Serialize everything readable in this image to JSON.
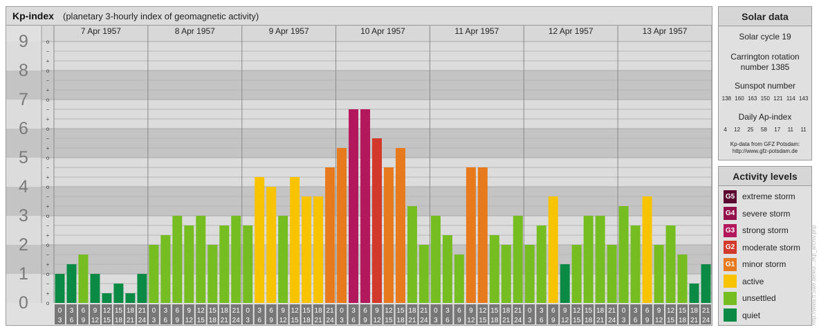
{
  "header": {
    "title": "Kp-index",
    "subtitle": "(planetary 3-hourly index of geomagnetic activity)"
  },
  "chart_data": {
    "type": "bar",
    "title": "Kp-index",
    "subtitle": "(planetary 3-hourly index of geomagnetic activity)",
    "ylim": [
      0,
      9
    ],
    "y_ticks": [
      "0",
      "1",
      "2",
      "3",
      "4",
      "5",
      "6",
      "7",
      "8",
      "9"
    ],
    "minor_tick_labels": [
      "o",
      "+",
      "−"
    ],
    "days": [
      "7 Apr 1957",
      "8 Apr 1957",
      "9 Apr 1957",
      "10 Apr 1957",
      "11 Apr 1957",
      "12 Apr 1957",
      "13 Apr 1957"
    ],
    "intervals": [
      [
        "0",
        "3"
      ],
      [
        "3",
        "6"
      ],
      [
        "6",
        "9"
      ],
      [
        "9",
        "12"
      ],
      [
        "12",
        "15"
      ],
      [
        "15",
        "18"
      ],
      [
        "18",
        "21"
      ],
      [
        "21",
        "24"
      ]
    ],
    "values": [
      [
        1.0,
        1.333,
        1.667,
        1.0,
        0.333,
        0.667,
        0.333,
        1.0
      ],
      [
        2.0,
        2.333,
        3.0,
        2.667,
        3.0,
        2.0,
        2.667,
        3.0
      ],
      [
        2.667,
        4.333,
        4.0,
        3.0,
        4.333,
        3.667,
        3.667,
        4.667
      ],
      [
        5.333,
        6.667,
        6.667,
        5.667,
        4.667,
        5.333,
        3.333,
        2.0
      ],
      [
        3.0,
        2.333,
        1.667,
        4.667,
        4.667,
        2.333,
        2.0,
        3.0
      ],
      [
        2.0,
        2.667,
        3.667,
        1.333,
        2.0,
        3.0,
        3.0,
        2.0
      ],
      [
        3.333,
        2.667,
        3.667,
        2.0,
        2.667,
        1.667,
        0.667,
        1.333
      ]
    ],
    "colors": {
      "quiet": "#0a8a44",
      "unsettled": "#76bd22",
      "active": "#f8c300",
      "G1": "#e67a1c",
      "G2": "#d2392a",
      "G3": "#b3175c",
      "G4": "#93124a",
      "G5": "#5c0930"
    },
    "grid": true
  },
  "solar": {
    "title": "Solar data",
    "cycle": "Solar cycle 19",
    "carrington_line1": "Carrington rotation",
    "carrington_line2": "number 1385",
    "sunspot_title": "Sunspot number",
    "sunspot_values": [
      "138",
      "160",
      "163",
      "150",
      "121",
      "114",
      "143"
    ],
    "ap_title": "Daily Ap-index",
    "ap_values": [
      "4",
      "12",
      "25",
      "58",
      "17",
      "11",
      "11"
    ],
    "source_line1": "Kp-data from GFZ Potsdam:",
    "source_line2": "http://www.gfz-potsdam.de"
  },
  "levels": {
    "title": "Activity levels",
    "items": [
      {
        "badge": "G5",
        "label": "extreme storm",
        "color": "#5c0930"
      },
      {
        "badge": "G4",
        "label": "severe storm",
        "color": "#93124a"
      },
      {
        "badge": "G3",
        "label": "strong storm",
        "color": "#b3175c"
      },
      {
        "badge": "G2",
        "label": "moderate storm",
        "color": "#d2392a"
      },
      {
        "badge": "G1",
        "label": "minor storm",
        "color": "#e67a1c"
      },
      {
        "badge": "",
        "label": "active",
        "color": "#f8c300"
      },
      {
        "badge": "",
        "label": "unsettled",
        "color": "#76bd22"
      },
      {
        "badge": "",
        "label": "quiet",
        "color": "#0a8a44"
      }
    ]
  },
  "watermark": "http://www.tf.Swe.de/ku/.../Kp_archiv.php"
}
